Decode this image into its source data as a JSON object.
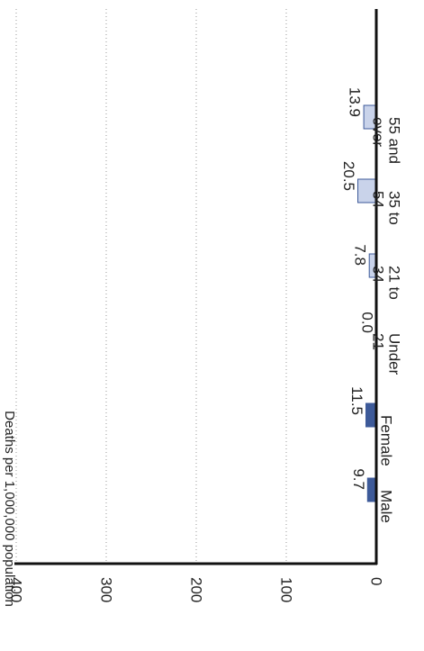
{
  "chart_data": {
    "type": "bar",
    "orientation": "horizontal",
    "ylabel": "Deaths per 1,000,000 population",
    "xlim": [
      0,
      400
    ],
    "ticks": [
      0,
      100,
      200,
      300,
      400
    ],
    "grid": true,
    "groups": [
      {
        "name": "sex",
        "color": "#3d5a99",
        "categories": [
          "Male",
          "Female"
        ],
        "values": [
          9.7,
          11.5
        ],
        "labels": [
          "9.7",
          "11.5"
        ]
      },
      {
        "name": "age",
        "color": "#c9d3ea",
        "categories": [
          "Under 21",
          "21 to 34",
          "35 to 54",
          "55 and over"
        ],
        "category_lines": [
          [
            "Under",
            "21"
          ],
          [
            "21 to",
            "34"
          ],
          [
            "35 to",
            "54"
          ],
          [
            "55 and",
            "over"
          ]
        ],
        "values": [
          0.0,
          7.8,
          20.5,
          13.9
        ],
        "labels": [
          "0.0",
          "7.8",
          "20.5",
          "13.9"
        ]
      }
    ]
  },
  "colors": {
    "bar_sex": "#3d5a99",
    "bar_age": "#c9d3ea",
    "bar_stroke": "#3d5a99",
    "axis": "#111111",
    "grid": "#9a9a9a"
  }
}
